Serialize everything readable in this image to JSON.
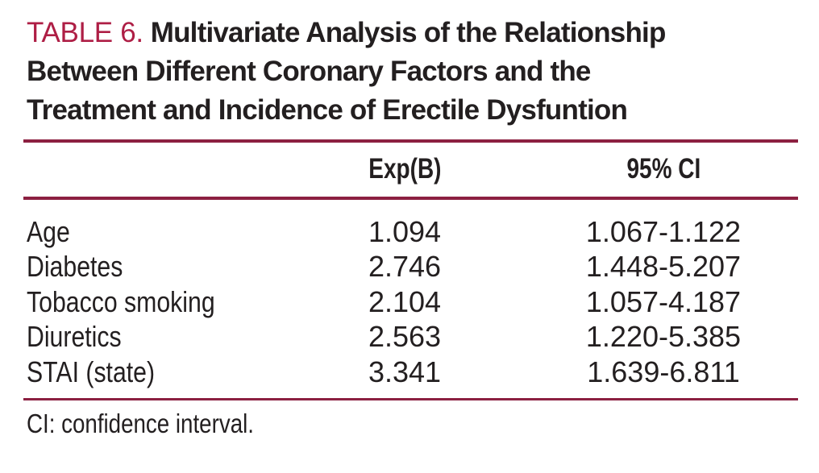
{
  "colors": {
    "accent_red": "#ae1e45",
    "rule_maroon": "#8c2041",
    "text_black": "#231f20",
    "background": "#ffffff"
  },
  "table": {
    "label": "TABLE 6.",
    "title_lines": [
      "Multivariate Analysis of the Relationship",
      "Between Different Coronary Factors and the",
      "Treatment and Incidence of Erectile Dysfuntion"
    ],
    "columns": {
      "factor": "",
      "exp_b": "Exp(B)",
      "ci": "95% CI"
    },
    "rows": [
      {
        "factor": "Age",
        "exp_b": "1.094",
        "ci": "1.067-1.122"
      },
      {
        "factor": "Diabetes",
        "exp_b": "2.746",
        "ci": "1.448-5.207"
      },
      {
        "factor": "Tobacco smoking",
        "exp_b": "2.104",
        "ci": "1.057-4.187"
      },
      {
        "factor": "Diuretics",
        "exp_b": "2.563",
        "ci": "1.220-5.385"
      },
      {
        "factor": "STAI (state)",
        "exp_b": "3.341",
        "ci": "1.639-6.811"
      }
    ],
    "footnote": "CI: confidence interval."
  }
}
